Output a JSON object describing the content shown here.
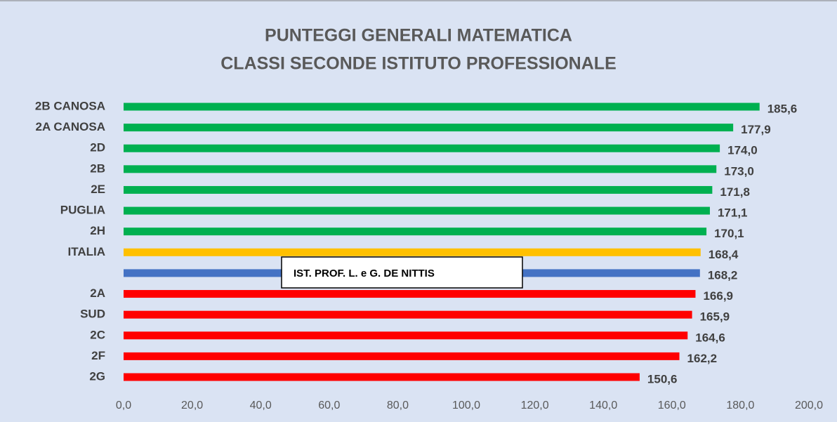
{
  "chart_data": {
    "type": "bar",
    "orientation": "horizontal",
    "title": "PUNTEGGI GENERALI MATEMATICA",
    "subtitle": "CLASSI SECONDE ISTITUTO PROFESSIONALE",
    "categories": [
      "2B CANOSA",
      "2A CANOSA",
      "2D",
      "2B",
      "2E",
      "PUGLIA",
      "2H",
      "ITALIA",
      null,
      "2A",
      "SUD",
      "2C",
      "2F",
      "2G"
    ],
    "values": [
      185.6,
      177.9,
      174.0,
      173.0,
      171.8,
      171.1,
      170.1,
      168.4,
      168.2,
      166.9,
      165.9,
      164.6,
      162.2,
      150.6
    ],
    "value_labels": [
      "185,6",
      "177,9",
      "174,0",
      "173,0",
      "171,8",
      "171,1",
      "170,1",
      "168,4",
      "168,2",
      "166,9",
      "165,9",
      "164,6",
      "162,2",
      "150,6"
    ],
    "colors": [
      "#00b050",
      "#00b050",
      "#00b050",
      "#00b050",
      "#00b050",
      "#00b050",
      "#00b050",
      "#ffc000",
      "#4472c4",
      "#ff0000",
      "#ff0000",
      "#ff0000",
      "#ff0000",
      "#ff0000"
    ],
    "xlim": [
      0,
      200
    ],
    "xticks": [
      {
        "value": 0,
        "label": "0,0"
      },
      {
        "value": 20,
        "label": "20,0"
      },
      {
        "value": 40,
        "label": "40,0"
      },
      {
        "value": 60,
        "label": "60,0"
      },
      {
        "value": 80,
        "label": "80,0"
      },
      {
        "value": 100,
        "label": "100,0"
      },
      {
        "value": 120,
        "label": "120,0"
      },
      {
        "value": 140,
        "label": "140,0"
      },
      {
        "value": 160,
        "label": "160,0"
      },
      {
        "value": 180,
        "label": "180,0"
      },
      {
        "value": 200,
        "label": "200,0"
      }
    ],
    "grid": false,
    "annotation": "IST. PROF. L. e G. DE NITTIS"
  }
}
